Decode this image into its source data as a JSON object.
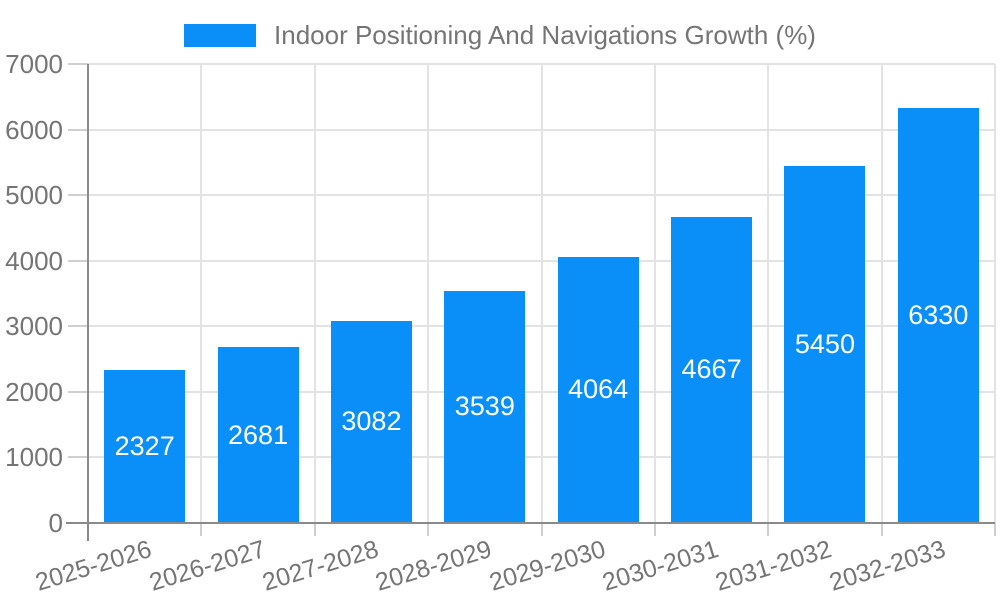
{
  "legend": {
    "label": "Indoor Positioning And Navigations Growth (%)"
  },
  "chart_data": {
    "type": "bar",
    "title": "",
    "xlabel": "",
    "ylabel": "",
    "categories": [
      "2025-2026",
      "2026-2027",
      "2027-2028",
      "2028-2029",
      "2029-2030",
      "2030-2031",
      "2031-2032",
      "2032-2033"
    ],
    "series": [
      {
        "name": "Indoor Positioning And Navigations Growth (%)",
        "values": [
          2327,
          2681,
          3082,
          3539,
          4064,
          4667,
          5450,
          6330
        ]
      }
    ],
    "bar_labels": [
      "2327",
      "2681",
      "3082",
      "3539",
      "4064",
      "4667",
      "5450",
      "6330"
    ],
    "ylim": [
      0,
      7000
    ],
    "ytick_step": 1000,
    "ytick_labels": [
      "0",
      "1000",
      "2000",
      "3000",
      "4000",
      "5000",
      "6000",
      "7000"
    ],
    "grid": true,
    "legend_position": "top-center",
    "x_label_rotation_deg": -17,
    "colors": {
      "bar": "#0a8ff9",
      "bar_label_text": "#ffffff",
      "tick_text": "#757575",
      "legend_text": "#757575",
      "grid": "#e3e3e3",
      "axis": "#8a8a8a"
    }
  }
}
